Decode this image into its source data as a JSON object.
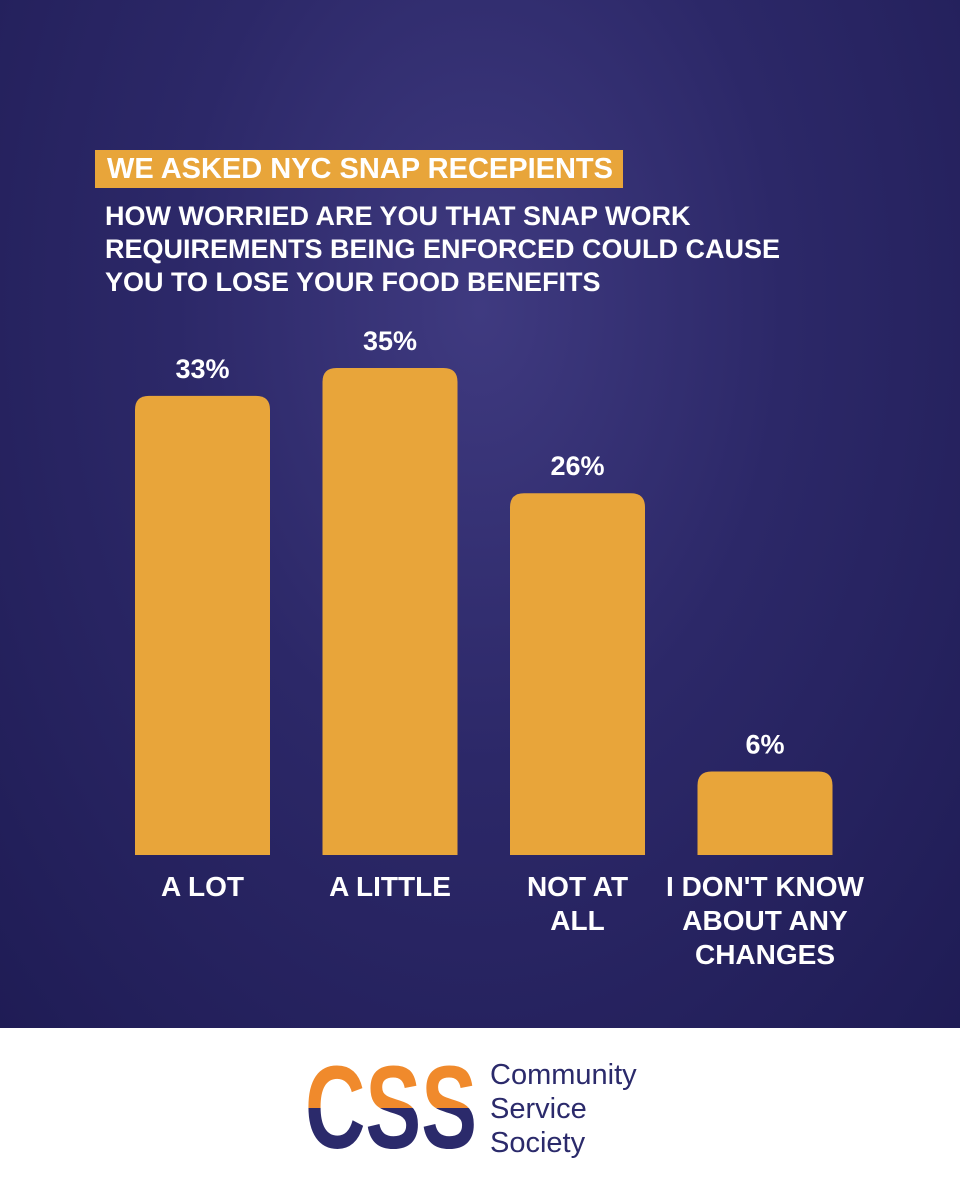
{
  "chart_data": {
    "type": "bar",
    "title": "WE ASKED NYC SNAP RECEPIENTS",
    "subtitle": "HOW WORRIED ARE YOU THAT SNAP WORK REQUIREMENTS BEING ENFORCED COULD CAUSE YOU TO LOSE YOUR FOOD BENEFITS",
    "categories": [
      "A LOT",
      "A LITTLE",
      "NOT AT ALL",
      "I DON'T KNOW ABOUT ANY CHANGES"
    ],
    "values": [
      33,
      35,
      26,
      6
    ],
    "value_labels": [
      "33%",
      "35%",
      "26%",
      "6%"
    ],
    "color": "#e8a53a"
  },
  "brand": {
    "mark": "CSS",
    "name": "Community Service Society"
  }
}
